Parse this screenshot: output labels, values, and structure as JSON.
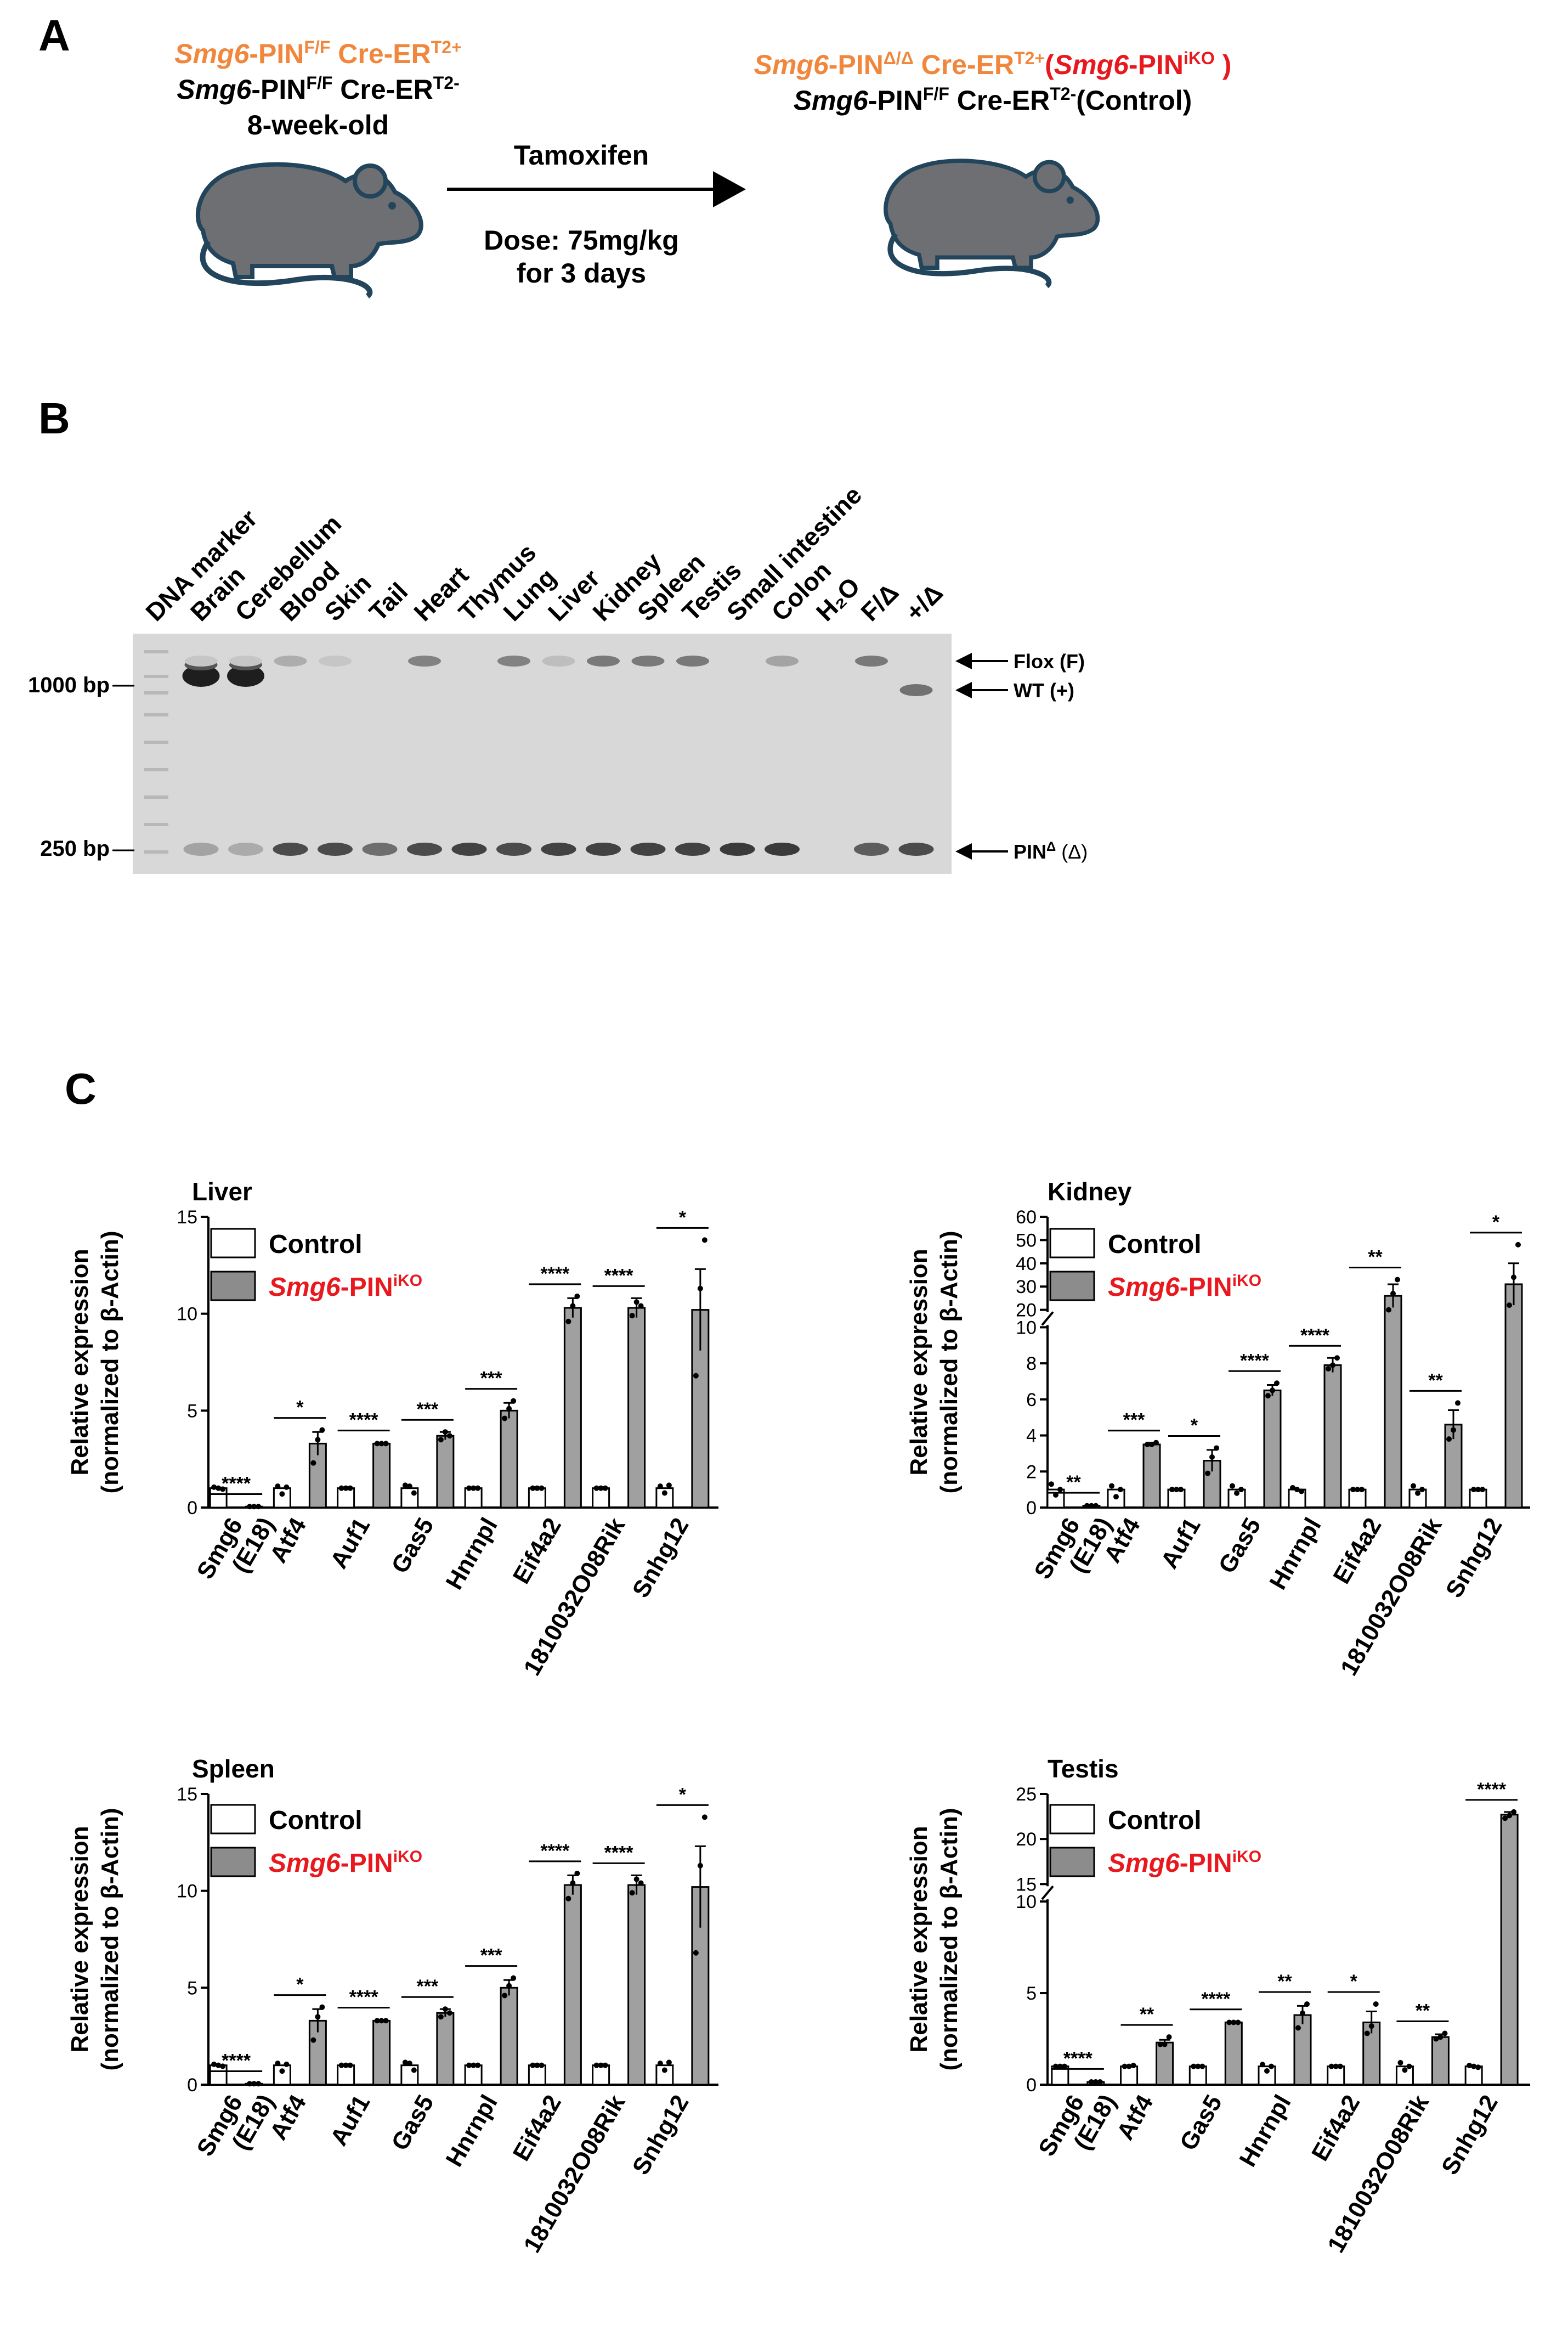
{
  "colors": {
    "orange": "#f0873c",
    "red": "#e8191e",
    "gel": "#d8d8d8",
    "bar_ctrl": "#ffffff",
    "bar_ko": "#a0a0a0",
    "legend_ko": "#8c8c8c",
    "mouse": "#6e6f73",
    "mouse_edge": "#23455c"
  },
  "panelA": {
    "letter": "A",
    "left_line1": {
      "gene": "Smg6",
      "rest": "-PIN",
      "sup": "F/F",
      "tail": " Cre-ER",
      "sup2": "T2+"
    },
    "left_line2": {
      "gene": "Smg6",
      "rest": "-PIN",
      "sup": "F/F",
      "tail": " Cre-ER",
      "sup2": "T2-"
    },
    "age": "8-week-old",
    "arrow_top": "Tamoxifen",
    "dose_line1": "Dose: 75mg/kg",
    "dose_line2": "for 3 days",
    "right_line1": {
      "gene": "Smg6",
      "rest": "-PIN",
      "sup": "Δ/Δ",
      "tail": " Cre-ER",
      "sup2": "T2+",
      "paren_open": "(",
      "ko_gene": "Smg6",
      "ko_rest": "-PIN",
      "ko_sup": "iKO",
      "paren_close": " )"
    },
    "right_line2": {
      "gene": "Smg6",
      "rest": "-PIN",
      "sup": "F/F",
      "tail": " Cre-ER",
      "sup2": "T2-",
      "suffix": "(Control)"
    }
  },
  "panelB": {
    "letter": "B",
    "lanes": [
      "DNA marker",
      "Brain",
      "Cerebellum",
      "Blood",
      "Skin",
      "Tail",
      "Heart",
      "Thymus",
      "Lung",
      "Liver",
      "Kidney",
      "Spleen",
      "Testis",
      "Small intestine",
      "Colon",
      "H₂O",
      "F/Δ",
      "+/Δ"
    ],
    "size_labels": [
      "1000 bp",
      "250 bp"
    ],
    "band_flox": "Flox (F)",
    "band_wt": "WT (+)",
    "band_pin": {
      "main": "PIN",
      "sup": "Δ",
      "rest": " (Δ)"
    }
  },
  "panelC": {
    "letter": "C",
    "ylabel_line1": "Relative expression",
    "ylabel_line2": "(normalized to β-Actin)",
    "legend": {
      "control": "Control",
      "ko_gene": "Smg6",
      "ko_rest": "-PIN",
      "ko_sup": "iKO"
    }
  },
  "chart_data": [
    {
      "type": "bar",
      "title": "Liver",
      "ylabel": "Relative expression (normalized to β-Actin)",
      "categories": [
        "Smg6 (E18)",
        "Atf4",
        "Auf1",
        "Gas5",
        "Hnrnpl",
        "Eif4a2",
        "1810032O08Rik",
        "Snhg12"
      ],
      "ylim": [
        0,
        15
      ],
      "yticks": [
        "0",
        "5",
        "10",
        "15"
      ],
      "series": [
        {
          "name": "Control",
          "values": [
            1,
            1,
            1,
            1,
            1,
            1,
            1,
            1
          ],
          "points": [
            [
              1.05,
              1.0,
              0.95
            ],
            [
              1.1,
              0.7,
              1.05
            ],
            [
              1.0,
              1.0,
              1.0
            ],
            [
              1.15,
              1.1,
              0.75
            ],
            [
              1.0,
              1.0,
              1.0
            ],
            [
              1.0,
              1.0,
              1.0
            ],
            [
              1.0,
              1.0,
              1.0
            ],
            [
              1.1,
              0.75,
              1.15
            ]
          ]
        },
        {
          "name": "Smg6-PINiKO",
          "values": [
            0.05,
            3.3,
            3.3,
            3.7,
            5.0,
            10.3,
            10.3,
            10.2
          ],
          "errors": [
            0.02,
            0.6,
            0.05,
            0.2,
            0.4,
            0.5,
            0.5,
            2.1
          ],
          "points": [
            [
              0.05,
              0.05,
              0.05
            ],
            [
              2.3,
              3.5,
              4.0
            ],
            [
              3.3,
              3.3,
              3.3
            ],
            [
              3.5,
              3.9,
              3.7
            ],
            [
              4.6,
              5.1,
              5.5
            ],
            [
              9.6,
              10.4,
              10.9
            ],
            [
              9.9,
              10.6,
              10.4
            ],
            [
              6.8,
              11.3,
              13.8
            ]
          ]
        }
      ],
      "significance": [
        "****",
        "*",
        "****",
        "***",
        "***",
        "****",
        "****",
        "*"
      ]
    },
    {
      "type": "bar",
      "title": "Kidney",
      "ylabel": "Relative expression (normalized to β-Actin)",
      "categories": [
        "Smg6 (E18)",
        "Atf4",
        "Auf1",
        "Gas5",
        "Hnrnpl",
        "Eif4a2",
        "1810032O08Rik",
        "Snhg12"
      ],
      "ylim": [
        0,
        60
      ],
      "y_break": [
        10,
        20
      ],
      "yticks": [
        "0",
        "2",
        "4",
        "6",
        "8",
        "10",
        "20",
        "30",
        "40",
        "50",
        "60"
      ],
      "series": [
        {
          "name": "Control",
          "values": [
            1,
            1,
            1,
            1,
            1,
            1,
            1,
            1
          ],
          "points": [
            [
              1.3,
              0.7,
              1.0
            ],
            [
              1.2,
              0.6,
              1.0
            ],
            [
              1.0,
              1.0,
              1.0
            ],
            [
              1.2,
              0.8,
              1.0
            ],
            [
              1.1,
              1.0,
              0.9
            ],
            [
              1.0,
              1.0,
              1.0
            ],
            [
              1.2,
              0.8,
              1.0
            ],
            [
              1.0,
              1.0,
              1.0
            ]
          ]
        },
        {
          "name": "Smg6-PINiKO",
          "values": [
            0.1,
            3.5,
            2.6,
            6.5,
            7.9,
            26,
            4.6,
            31
          ],
          "errors": [
            0.05,
            0.1,
            0.6,
            0.3,
            0.4,
            5,
            0.8,
            9
          ],
          "points": [
            [
              0.1,
              0.1,
              0.1
            ],
            [
              3.5,
              3.5,
              3.6
            ],
            [
              1.9,
              2.8,
              3.3
            ],
            [
              6.2,
              6.5,
              6.9
            ],
            [
              7.7,
              7.9,
              8.3
            ],
            [
              19,
              27,
              33
            ],
            [
              3.8,
              4.3,
              5.8
            ],
            [
              22,
              34,
              48
            ]
          ]
        }
      ],
      "significance": [
        "**",
        "***",
        "*",
        "****",
        "****",
        "**",
        "**",
        "*"
      ]
    },
    {
      "type": "bar",
      "title": "Spleen",
      "ylabel": "Relative expression (normalized to β-Actin)",
      "categories": [
        "Smg6 (E18)",
        "Atf4",
        "Auf1",
        "Gas5",
        "Hnrnpl",
        "Eif4a2",
        "1810032O08Rik",
        "Snhg12"
      ],
      "ylim": [
        0,
        15
      ],
      "yticks": [
        "0",
        "5",
        "10",
        "15"
      ],
      "series": [
        {
          "name": "Control",
          "values": [
            1,
            1,
            1,
            1,
            1,
            1,
            1,
            1
          ],
          "points": [
            [
              1.05,
              1.0,
              0.95
            ],
            [
              1.1,
              0.7,
              1.05
            ],
            [
              1.0,
              1.0,
              1.0
            ],
            [
              1.15,
              1.1,
              0.75
            ],
            [
              1.0,
              1.0,
              1.0
            ],
            [
              1.0,
              1.0,
              1.0
            ],
            [
              1.0,
              1.0,
              1.0
            ],
            [
              1.1,
              0.75,
              1.15
            ]
          ]
        },
        {
          "name": "Smg6-PINiKO",
          "values": [
            0.05,
            3.3,
            3.3,
            3.7,
            5.0,
            10.3,
            10.3,
            10.2
          ],
          "errors": [
            0.02,
            0.6,
            0.05,
            0.2,
            0.4,
            0.5,
            0.5,
            2.1
          ],
          "points": [
            [
              0.05,
              0.05,
              0.05
            ],
            [
              2.3,
              3.5,
              4.0
            ],
            [
              3.3,
              3.3,
              3.3
            ],
            [
              3.5,
              3.9,
              3.7
            ],
            [
              4.6,
              5.1,
              5.5
            ],
            [
              9.6,
              10.4,
              10.9
            ],
            [
              9.9,
              10.6,
              10.4
            ],
            [
              6.8,
              11.3,
              13.8
            ]
          ]
        }
      ],
      "significance": [
        "****",
        "*",
        "****",
        "***",
        "***",
        "****",
        "****",
        "*"
      ]
    },
    {
      "type": "bar",
      "title": "Testis",
      "ylabel": "Relative expression (normalized to β-Actin)",
      "categories": [
        "Smg6 (E18)",
        "Atf4",
        "Gas5",
        "Hnrnpl",
        "Eif4a2",
        "1810032O08Rik",
        "Snhg12"
      ],
      "ylim": [
        0,
        25
      ],
      "y_break": [
        10,
        15
      ],
      "yticks": [
        "0",
        "5",
        "10",
        "15",
        "20",
        "25"
      ],
      "series": [
        {
          "name": "Control",
          "values": [
            1,
            1,
            1,
            1,
            1,
            1,
            1
          ],
          "points": [
            [
              1.0,
              1.0,
              1.0
            ],
            [
              1.0,
              1.0,
              1.05
            ],
            [
              1.0,
              1.0,
              1.0
            ],
            [
              1.1,
              0.75,
              1.0
            ],
            [
              1.0,
              1.0,
              1.0
            ],
            [
              1.2,
              0.8,
              1.0
            ],
            [
              1.05,
              1.0,
              0.95
            ]
          ]
        },
        {
          "name": "Smg6-PINiKO",
          "values": [
            0.15,
            2.3,
            3.4,
            3.8,
            3.4,
            2.6,
            22.7
          ],
          "errors": [
            0.05,
            0.15,
            0.05,
            0.5,
            0.6,
            0.15,
            0.3
          ],
          "points": [
            [
              0.15,
              0.15,
              0.15
            ],
            [
              2.2,
              2.2,
              2.6
            ],
            [
              3.4,
              3.4,
              3.4
            ],
            [
              3.1,
              3.9,
              4.4
            ],
            [
              2.8,
              3.2,
              4.4
            ],
            [
              2.5,
              2.6,
              2.8
            ],
            [
              22.3,
              22.6,
              23.0
            ]
          ]
        }
      ],
      "significance": [
        "****",
        "**",
        "****",
        "**",
        "*",
        "**",
        "****"
      ]
    }
  ]
}
